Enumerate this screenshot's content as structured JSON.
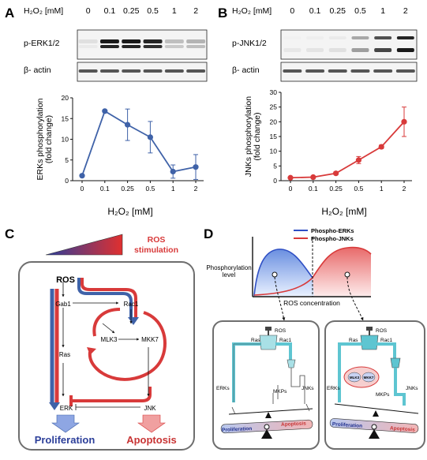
{
  "panels": {
    "A": {
      "letter": "A",
      "header_label": "H₂O₂ [mM]",
      "lanes": [
        "0",
        "0.1",
        "0.25",
        "0.5",
        "1",
        "2"
      ],
      "blots": [
        "p-ERK1/2",
        "β- actin"
      ],
      "band_intensity": [
        0.05,
        0.95,
        0.95,
        0.9,
        0.2,
        0.25
      ],
      "xlabel": "H₂O₂ [mM]",
      "ylabel_line1": "ERKs phosphorylation",
      "ylabel_line2": "(fold change)"
    },
    "B": {
      "letter": "B",
      "header_label": "H₂O₂ [mM]",
      "lanes": [
        "0",
        "0.1",
        "0.25",
        "0.5",
        "1",
        "2"
      ],
      "blots": [
        "p-JNK1/2",
        "β- actin"
      ],
      "band_intensity": [
        0.02,
        0.03,
        0.05,
        0.35,
        0.75,
        0.95
      ],
      "xlabel": "H₂O₂ [mM]",
      "ylabel_line1": "JNKs phosphorylation",
      "ylabel_line2": "(fold change)"
    },
    "C": {
      "letter": "C",
      "stimulation_line1": "ROS",
      "stimulation_line2": "stimulation",
      "nodes": {
        "ros": "ROS",
        "gab1": "Gab1",
        "rac1": "Rac1",
        "ras": "Ras",
        "mlk3": "MLK3",
        "mkk7": "MKK7",
        "erk": "ERK",
        "jnk": "JNK"
      },
      "proliferation": "Proliferation",
      "apoptosis": "Apoptosis"
    },
    "D": {
      "letter": "D",
      "legend": [
        "Phospho-ERKs",
        "Phospho-JNKs"
      ],
      "ylabel_line1": "Phosphorylation",
      "ylabel_line2": "level",
      "xlabel": "ROS concentration",
      "box_labels": {
        "ros": "ROS",
        "ras": "Ras",
        "rac1": "Rac1",
        "erks": "ERKs",
        "jnks": "JNKs",
        "mkps": "MKPs",
        "mlk3": "MLK3",
        "mkk7": "MKK7",
        "proliferation": "Proliferation",
        "apoptosis": "Apoptosis"
      }
    }
  },
  "colors": {
    "erk_blue": "#3f62a8",
    "jnk_red": "#d83a3a",
    "frame_gray": "#6e6e6e",
    "pipe_cyan": "#5ec5d1"
  },
  "chart_data": [
    {
      "type": "line",
      "categories": [
        "0",
        "0.1",
        "0.25",
        "0.5",
        "1",
        "2"
      ],
      "series": [
        {
          "values": [
            1.2,
            16.8,
            13.5,
            10.5,
            2.2,
            3.3
          ],
          "errors": [
            0,
            0,
            3.8,
            3.8,
            1.6,
            3.0
          ]
        }
      ],
      "xlabel": "H₂O₂ [mM]",
      "ylabel": "ERKs phosphorylation (fold change)",
      "ylim": [
        0,
        20
      ],
      "yticks": [
        0,
        5,
        10,
        15,
        20
      ],
      "color": "#3f62a8"
    },
    {
      "type": "line",
      "categories": [
        "0",
        "0.1",
        "0.25",
        "0.5",
        "1",
        "2"
      ],
      "series": [
        {
          "values": [
            1.0,
            1.2,
            2.5,
            7.0,
            11.5,
            20.0
          ],
          "errors": [
            0.3,
            0.4,
            0.5,
            1.2,
            0.6,
            5.0
          ]
        }
      ],
      "xlabel": "H₂O₂ [mM]",
      "ylabel": "JNKs phosphorylation (fold change)",
      "ylim": [
        0,
        30
      ],
      "yticks": [
        0,
        5,
        10,
        15,
        20,
        25,
        30
      ],
      "color": "#d83a3a"
    }
  ]
}
